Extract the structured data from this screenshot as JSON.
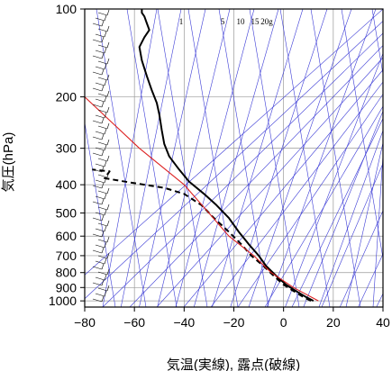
{
  "chart_data": {
    "type": "line",
    "title": "",
    "xlabel": "気温(実線), 露点(破線)",
    "ylabel": "気圧(hPa)",
    "xlim": [
      -80,
      40
    ],
    "ylim": [
      1050,
      100
    ],
    "y_scale": "log",
    "x_ticks": [
      "−80",
      "−60",
      "−40",
      "−20",
      "0",
      "20",
      "40"
    ],
    "y_ticks": [
      {
        "value": 100,
        "label": "100"
      },
      {
        "value": 200,
        "label": "200"
      },
      {
        "value": 300,
        "label": "300"
      },
      {
        "value": 400,
        "label": "400"
      },
      {
        "value": 500,
        "label": "500"
      },
      {
        "value": 600,
        "label": "600"
      },
      {
        "value": 700,
        "label": "700"
      },
      {
        "value": 800,
        "label": "800"
      },
      {
        "value": 900,
        "label": "900"
      },
      {
        "value": 1000,
        "label": "1000"
      }
    ],
    "mixing_ratio_labels": [
      "1",
      "5",
      "10",
      "15",
      "20g"
    ],
    "series": [
      {
        "style": "solid",
        "color": "#000000",
        "points": [
          [
            12,
            1000
          ],
          [
            9,
            970
          ],
          [
            5,
            925
          ],
          [
            1,
            880
          ],
          [
            -3,
            820
          ],
          [
            -7,
            760
          ],
          [
            -10,
            700
          ],
          [
            -14,
            640
          ],
          [
            -18,
            580
          ],
          [
            -22,
            520
          ],
          [
            -27,
            470
          ],
          [
            -32,
            430
          ],
          [
            -38,
            390
          ],
          [
            -42,
            355
          ],
          [
            -46,
            320
          ],
          [
            -48,
            290
          ],
          [
            -49,
            260
          ],
          [
            -50,
            230
          ],
          [
            -51,
            210
          ],
          [
            -53,
            190
          ],
          [
            -55,
            170
          ],
          [
            -57,
            150
          ],
          [
            -58,
            135
          ],
          [
            -56,
            125
          ],
          [
            -54,
            118
          ],
          [
            -55,
            112
          ],
          [
            -56,
            106
          ],
          [
            -57,
            103
          ],
          [
            -57,
            100
          ]
        ]
      },
      {
        "style": "dashed",
        "color": "#000000",
        "points": [
          [
            11,
            1000
          ],
          [
            8,
            970
          ],
          [
            4,
            925
          ],
          [
            0,
            880
          ],
          [
            -4,
            820
          ],
          [
            -8,
            760
          ],
          [
            -13,
            700
          ],
          [
            -17,
            640
          ],
          [
            -22,
            580
          ],
          [
            -28,
            520
          ],
          [
            -33,
            470
          ],
          [
            -40,
            430
          ],
          [
            -48,
            410
          ],
          [
            -60,
            395
          ],
          [
            -72,
            380
          ],
          [
            -70,
            360
          ],
          [
            -77,
            355
          ]
        ]
      },
      {
        "style": "solid",
        "color": "#dd2222",
        "points": [
          [
            14,
            1000
          ],
          [
            4,
            900
          ],
          [
            -5,
            800
          ],
          [
            -12,
            700
          ],
          [
            -22,
            600
          ],
          [
            -30,
            500
          ],
          [
            -40,
            400
          ],
          [
            -58,
            300
          ],
          [
            -80,
            200
          ]
        ]
      }
    ],
    "wind_barbs": "left column, light winds"
  }
}
